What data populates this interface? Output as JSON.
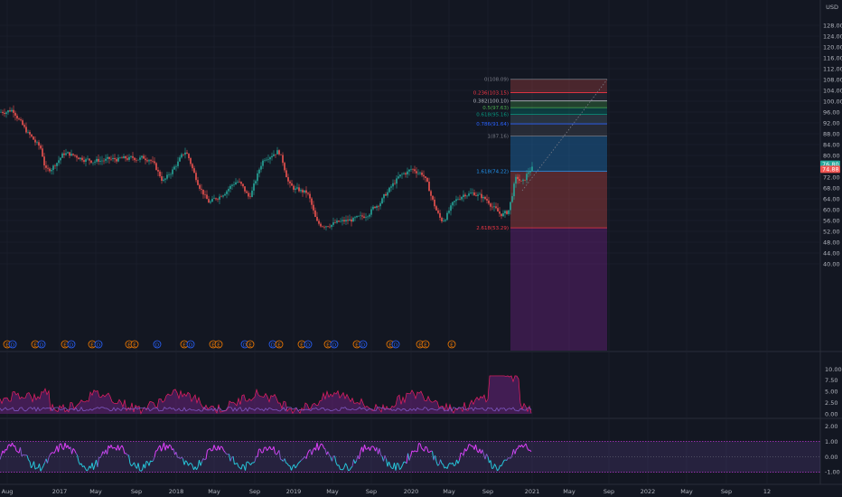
{
  "currency": "USD",
  "colors": {
    "bg": "#131722",
    "grid": "#1f2330",
    "up": "#26a69a",
    "down": "#ef5350",
    "text": "#b2b5be",
    "earn": "#f57c00",
    "div": "#2962ff"
  },
  "price_axis": [
    "128.00",
    "124.00",
    "120.00",
    "116.00",
    "112.00",
    "108.00",
    "104.00",
    "100.00",
    "96.00",
    "92.00",
    "88.00",
    "84.00",
    "80.00",
    "76.00",
    "72.00",
    "68.00",
    "64.00",
    "60.00",
    "56.00",
    "52.00",
    "48.00",
    "44.00",
    "40.00"
  ],
  "price_ticks": [
    128,
    124,
    120,
    116,
    112,
    108,
    104,
    100,
    96,
    92,
    88,
    84,
    80,
    76,
    72,
    68,
    64,
    60,
    56,
    52,
    48,
    44,
    40
  ],
  "price_labels": {
    "current": "76.80",
    "second": "74.88"
  },
  "indicator1_axis": [
    "10.00",
    "7.50",
    "5.00",
    "2.50",
    "0.00"
  ],
  "indicator1_ticks": [
    10,
    7.5,
    5,
    2.5,
    0
  ],
  "indicator2_axis": [
    "2.00",
    "1.00",
    "0.00",
    "-1.00"
  ],
  "indicator2_ticks": [
    2,
    1,
    0,
    -1
  ],
  "time_axis": [
    "Aug",
    "2017",
    "May",
    "Sep",
    "2018",
    "May",
    "Sep",
    "2019",
    "May",
    "Sep",
    "2020",
    "May",
    "Sep",
    "2021",
    "May",
    "Sep",
    "2022",
    "May",
    "Sep",
    "12"
  ],
  "fib_levels": [
    {
      "label": "0(108.09)",
      "price": 108.09,
      "color": "#787b86"
    },
    {
      "label": "0.236(103.15)",
      "price": 103.15,
      "color": "#f23645"
    },
    {
      "label": "0.382(100.10)",
      "price": 100.1,
      "color": "#b2b5be"
    },
    {
      "label": "0.5(97.63)",
      "price": 97.63,
      "color": "#4caf50"
    },
    {
      "label": "0.618(95.16)",
      "price": 95.16,
      "color": "#089981"
    },
    {
      "label": "0.786(91.64)",
      "price": 91.64,
      "color": "#2962ff"
    },
    {
      "label": "1(87.16)",
      "price": 87.16,
      "color": "#787b86"
    },
    {
      "label": "1.618(74.22)",
      "price": 74.22,
      "color": "#2196f3"
    },
    {
      "label": "2.618(53.29)",
      "price": 53.29,
      "color": "#f23645"
    }
  ],
  "event_markers": [
    {
      "type": "E"
    },
    {
      "type": "D"
    },
    {
      "type": "E"
    },
    {
      "type": "D"
    },
    {
      "type": "E"
    },
    {
      "type": "D"
    },
    {
      "type": "E"
    },
    {
      "type": "D"
    },
    {
      "type": "E"
    },
    {
      "type": "E"
    },
    {
      "type": "D"
    },
    {
      "type": "E"
    },
    {
      "type": "D"
    },
    {
      "type": "E"
    },
    {
      "type": "E"
    },
    {
      "type": "D"
    },
    {
      "type": "E"
    },
    {
      "type": "D"
    },
    {
      "type": "E"
    },
    {
      "type": "E"
    },
    {
      "type": "D"
    },
    {
      "type": "E"
    },
    {
      "type": "D"
    },
    {
      "type": "E"
    },
    {
      "type": "D"
    },
    {
      "type": "E"
    },
    {
      "type": "D"
    },
    {
      "type": "E"
    },
    {
      "type": "E"
    },
    {
      "type": "E"
    }
  ]
}
